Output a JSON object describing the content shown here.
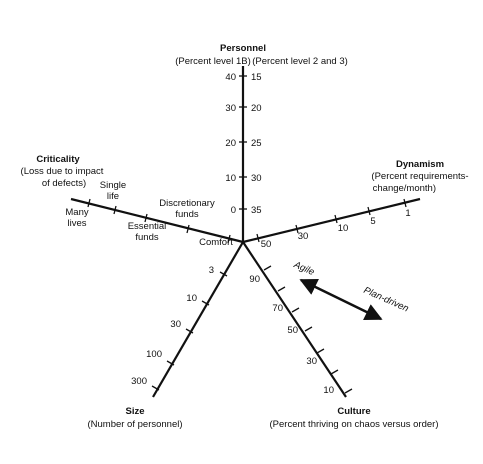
{
  "personnel": {
    "title": "Personnel",
    "subtitle_left": "(Percent level 1B)",
    "subtitle_right": "(Percent level 2 and 3)",
    "ticks_left": [
      "40",
      "30",
      "20",
      "10",
      "0"
    ],
    "ticks_right": [
      "15",
      "20",
      "25",
      "30",
      "35"
    ]
  },
  "dynamism": {
    "title": "Dynamism",
    "subtitle_1": "(Percent requirements-",
    "subtitle_2": "change/month)",
    "ticks": [
      "50",
      "30",
      "10",
      "5",
      "1"
    ]
  },
  "criticality": {
    "title": "Criticality",
    "subtitle_1": "(Loss due to impact",
    "subtitle_2": "of defects)",
    "ticks": [
      "Comfort",
      "Discretionary funds",
      "Essential funds",
      "Single life",
      "Many lives"
    ]
  },
  "size": {
    "title": "Size",
    "subtitle": "(Number of personnel)",
    "ticks": [
      "3",
      "10",
      "30",
      "100",
      "300"
    ]
  },
  "culture": {
    "title": "Culture",
    "subtitle": "(Percent thriving on chaos versus order)",
    "ticks": [
      "90",
      "70",
      "50",
      "30",
      "10"
    ]
  },
  "arrow": {
    "agile_label": "Agile",
    "plan_label": "Plan-driven"
  }
}
